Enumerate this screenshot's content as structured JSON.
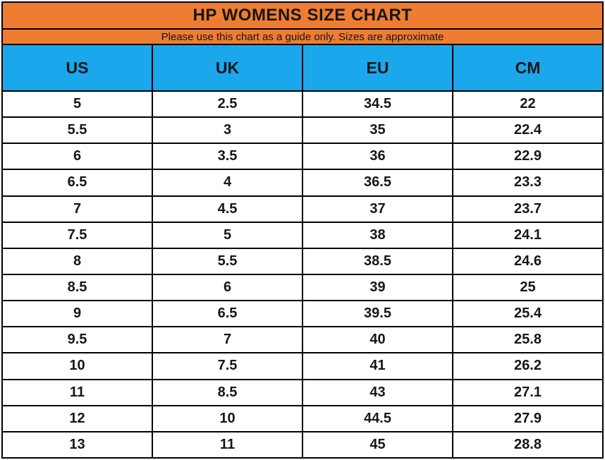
{
  "chart_data": {
    "type": "table",
    "title": "HP WOMENS SIZE CHART",
    "subtitle": "Please use this chart as a guide only. Sizes are approximate",
    "columns": [
      "US",
      "UK",
      "EU",
      "CM"
    ],
    "rows": [
      [
        "5",
        "2.5",
        "34.5",
        "22"
      ],
      [
        "5.5",
        "3",
        "35",
        "22.4"
      ],
      [
        "6",
        "3.5",
        "36",
        "22.9"
      ],
      [
        "6.5",
        "4",
        "36.5",
        "23.3"
      ],
      [
        "7",
        "4.5",
        "37",
        "23.7"
      ],
      [
        "7.5",
        "5",
        "38",
        "24.1"
      ],
      [
        "8",
        "5.5",
        "38.5",
        "24.6"
      ],
      [
        "8.5",
        "6",
        "39",
        "25"
      ],
      [
        "9",
        "6.5",
        "39.5",
        "25.4"
      ],
      [
        "9.5",
        "7",
        "40",
        "25.8"
      ],
      [
        "10",
        "7.5",
        "41",
        "26.2"
      ],
      [
        "11",
        "8.5",
        "43",
        "27.1"
      ],
      [
        "12",
        "10",
        "44.5",
        "27.9"
      ],
      [
        "13",
        "11",
        "45",
        "28.8"
      ]
    ]
  },
  "colors": {
    "title_band": "#ee7d31",
    "header_band": "#1ba7ec",
    "border": "#000000",
    "cell_background": "#ffffff",
    "text": "#161616"
  }
}
